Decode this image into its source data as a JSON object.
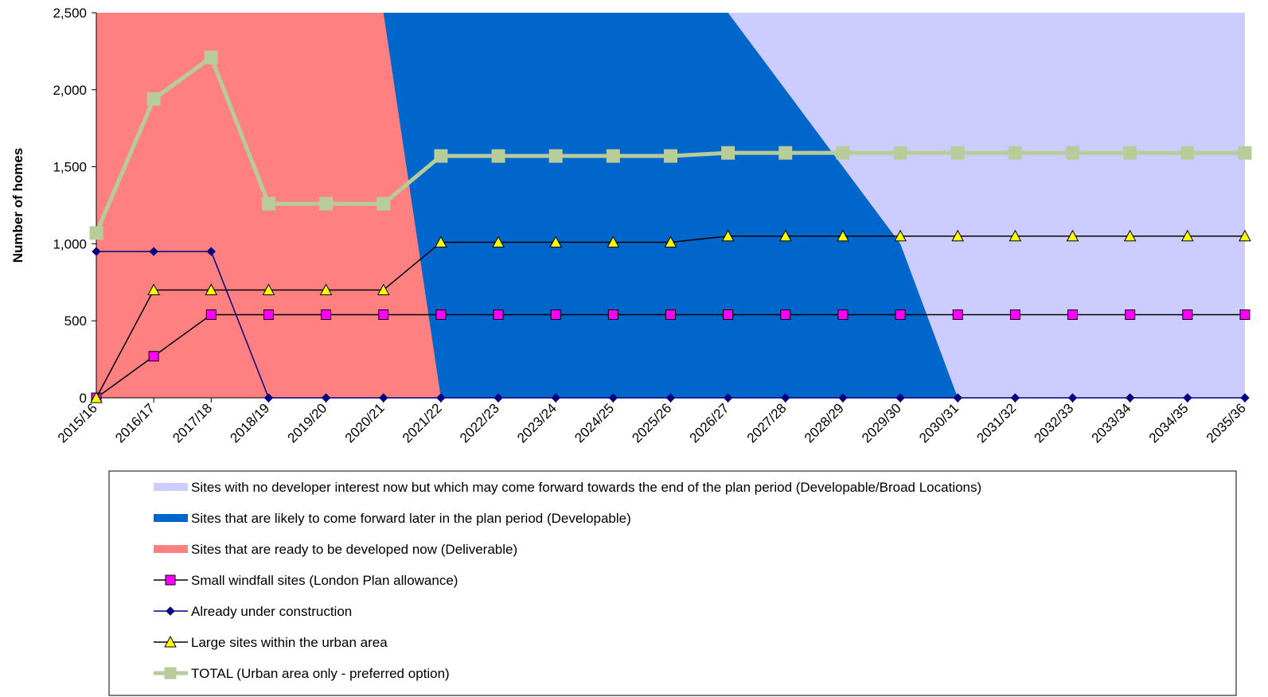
{
  "chart_data": {
    "type": "line",
    "title": "",
    "xlabel": "",
    "ylabel": "Number of homes",
    "ylim": [
      0,
      2500
    ],
    "yticks": [
      "0",
      "500",
      "1,000",
      "1,500",
      "2,000",
      "2,500"
    ],
    "ytick_values": [
      0,
      500,
      1000,
      1500,
      2000,
      2500
    ],
    "categories": [
      "2015/16",
      "2016/17",
      "2017/18",
      "2018/19",
      "2019/20",
      "2020/21",
      "2021/22",
      "2022/23",
      "2023/24",
      "2024/25",
      "2025/26",
      "2026/27",
      "2027/28",
      "2028/29",
      "2029/30",
      "2030/31",
      "2031/32",
      "2032/33",
      "2033/34",
      "2034/35",
      "2035/36"
    ],
    "grid": false,
    "legend_position": "bottom",
    "areas": [
      {
        "name": "Sites with no developer interest now but which may come forward towards the end of the plan period (Developable/Broad Locations)",
        "color": "#ccccff",
        "top": [
          2500,
          2500,
          2500,
          2500,
          2500,
          2500,
          2500,
          2500,
          2500,
          2500,
          2500,
          2500,
          2500,
          2500,
          2500,
          2500,
          2500,
          2500,
          2500,
          2500,
          2500
        ]
      },
      {
        "name": "Sites that are likely to come forward later in the plan period (Developable)",
        "color": "#0066cc",
        "top": [
          2500,
          2500,
          2500,
          2500,
          2500,
          2500,
          2500,
          2500,
          2500,
          2500,
          2500,
          2500,
          2000,
          1500,
          1000,
          0,
          0,
          0,
          0,
          0,
          0
        ]
      },
      {
        "name": "Sites that are ready to be developed now (Deliverable)",
        "color": "#ff8080",
        "top": [
          2500,
          2500,
          2500,
          2500,
          2500,
          2500,
          0,
          0,
          0,
          0,
          0,
          0,
          0,
          0,
          0,
          0,
          0,
          0,
          0,
          0,
          0
        ]
      }
    ],
    "series": [
      {
        "name": "Small windfall sites (London Plan allowance)",
        "color": "#000000",
        "marker": "square",
        "marker_fill": "#ff00ff",
        "values": [
          0,
          270,
          540,
          540,
          540,
          540,
          540,
          540,
          540,
          540,
          540,
          540,
          540,
          540,
          540,
          540,
          540,
          540,
          540,
          540,
          540
        ]
      },
      {
        "name": "Already under construction",
        "color": "#000080",
        "marker": "diamond",
        "marker_fill": "#000080",
        "values": [
          950,
          950,
          950,
          0,
          0,
          0,
          0,
          0,
          0,
          0,
          0,
          0,
          0,
          0,
          0,
          0,
          0,
          0,
          0,
          0,
          0
        ]
      },
      {
        "name": "Large sites within the urban area",
        "color": "#000000",
        "marker": "triangle",
        "marker_fill": "#ffff00",
        "values": [
          0,
          700,
          700,
          700,
          700,
          700,
          1010,
          1010,
          1010,
          1010,
          1010,
          1050,
          1050,
          1050,
          1050,
          1050,
          1050,
          1050,
          1050,
          1050,
          1050
        ]
      },
      {
        "name": "TOTAL (Urban area only - preferred option)",
        "color": "#b8cc99",
        "marker": "square",
        "marker_fill": "#b8cc99",
        "values": [
          1070,
          1940,
          2210,
          1260,
          1260,
          1260,
          1570,
          1570,
          1570,
          1570,
          1570,
          1590,
          1590,
          1590,
          1590,
          1590,
          1590,
          1590,
          1590,
          1590,
          1590
        ]
      }
    ],
    "legend": [
      {
        "label": "Sites with no developer interest now but which may come forward towards the end of the plan period (Developable/Broad Locations)",
        "kind": "area",
        "color": "#ccccff"
      },
      {
        "label": "Sites that are likely to come forward later in the plan period (Developable)",
        "kind": "area",
        "color": "#0066cc"
      },
      {
        "label": "Sites that are ready to be developed now (Deliverable)",
        "kind": "area",
        "color": "#ff8080"
      },
      {
        "label": "Small windfall sites (London Plan allowance)",
        "kind": "line",
        "color": "#000000",
        "marker": "square",
        "marker_fill": "#ff00ff"
      },
      {
        "label": "Already under construction",
        "kind": "line",
        "color": "#000080",
        "marker": "diamond",
        "marker_fill": "#000080"
      },
      {
        "label": "Large sites within the urban area",
        "kind": "line",
        "color": "#000000",
        "marker": "triangle",
        "marker_fill": "#ffff00"
      },
      {
        "label": "TOTAL (Urban area only - preferred option)",
        "kind": "line",
        "color": "#b8cc99",
        "marker": "square",
        "marker_fill": "#b8cc99"
      }
    ]
  }
}
